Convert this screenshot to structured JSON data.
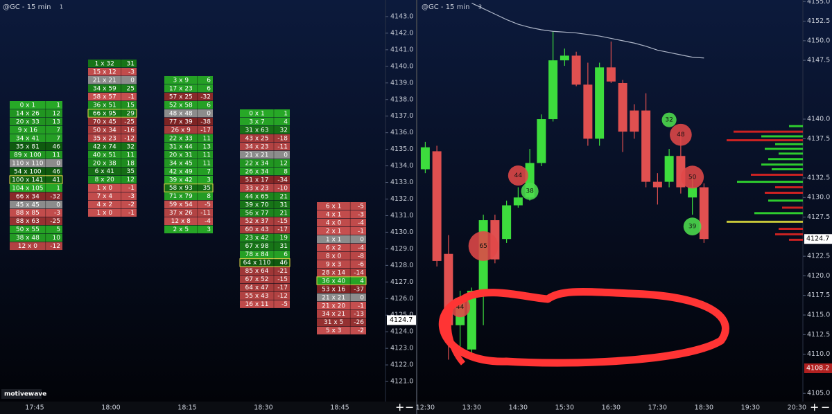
{
  "footprint": {
    "title": "@GC - 15 min",
    "badge": "1",
    "watermark": "motivewave",
    "ylim": [
      4120,
      4144
    ],
    "ticks": [
      {
        "value": 4143,
        "label": "4143.0"
      },
      {
        "value": 4142,
        "label": "4142.0"
      },
      {
        "value": 4141,
        "label": "4141.0"
      },
      {
        "value": 4140,
        "label": "4140.0"
      },
      {
        "value": 4139,
        "label": "4139.0"
      },
      {
        "value": 4138,
        "label": "4138.0"
      },
      {
        "value": 4137,
        "label": "4137.0"
      },
      {
        "value": 4136,
        "label": "4136.0"
      },
      {
        "value": 4135,
        "label": "4135.0"
      },
      {
        "value": 4134,
        "label": "4134.0"
      },
      {
        "value": 4133,
        "label": "4133.0"
      },
      {
        "value": 4132,
        "label": "4132.0"
      },
      {
        "value": 4131,
        "label": "4131.0"
      },
      {
        "value": 4130,
        "label": "4130.0"
      },
      {
        "value": 4129,
        "label": "4129.0"
      },
      {
        "value": 4128,
        "label": "4128.0"
      },
      {
        "value": 4127,
        "label": "4127.0"
      },
      {
        "value": 4126,
        "label": "4126.0"
      },
      {
        "value": 4125,
        "label": "4125.0"
      },
      {
        "value": 4124,
        "label": "4124.0"
      },
      {
        "value": 4123,
        "label": "4123.0"
      },
      {
        "value": 4122,
        "label": "4122.0"
      },
      {
        "value": 4121,
        "label": "4121.0"
      }
    ],
    "last_price": 4124.7,
    "time_labels": [
      "17:45",
      "18:00",
      "18:15",
      "18:30",
      "18:45"
    ],
    "columns": [
      {
        "cells": [
          {
            "label": "0 x 1",
            "delta": 1
          },
          {
            "label": "14 x 26",
            "delta": 12
          },
          {
            "label": "20 x 33",
            "delta": 13
          },
          {
            "label": "9 x 16",
            "delta": 7
          },
          {
            "label": "34 x 41",
            "delta": 7
          },
          {
            "label": "35 x 81",
            "delta": 46
          },
          {
            "label": "89 x 100",
            "delta": 11
          },
          {
            "label": "110 x 110",
            "delta": 0
          },
          {
            "label": "54 x 100",
            "delta": 46
          },
          {
            "label": "100 x 141",
            "delta": 41,
            "boxed": true
          },
          {
            "label": "104 x 105",
            "delta": 1
          },
          {
            "label": "66 x 34",
            "delta": -32
          },
          {
            "label": "45 x 45",
            "delta": 0
          },
          {
            "label": "88 x 85",
            "delta": -3
          },
          {
            "label": "88 x 63",
            "delta": -25
          },
          {
            "label": "50 x 55",
            "delta": 5
          },
          {
            "label": "38 x 48",
            "delta": 10
          },
          {
            "label": "12 x 0",
            "delta": -12
          }
        ]
      },
      {
        "cells": [
          {
            "label": "1 x 32",
            "delta": 31
          },
          {
            "label": "15 x 12",
            "delta": -3
          },
          {
            "label": "21 x 21",
            "delta": 0
          },
          {
            "label": "34 x 59",
            "delta": 25
          },
          {
            "label": "58 x 57",
            "delta": -1
          },
          {
            "label": "36 x 51",
            "delta": 15
          },
          {
            "label": "66 x 95",
            "delta": 29,
            "boxed": true
          },
          {
            "label": "70 x 45",
            "delta": -25
          },
          {
            "label": "50 x 34",
            "delta": -16
          },
          {
            "label": "35 x 23",
            "delta": -12
          },
          {
            "label": "42 x 74",
            "delta": 32
          },
          {
            "label": "40 x 51",
            "delta": 11
          },
          {
            "label": "20 x 38",
            "delta": 18
          },
          {
            "label": "6 x 41",
            "delta": 35
          },
          {
            "label": "8 x 20",
            "delta": 12
          },
          {
            "label": "1 x 0",
            "delta": -1
          },
          {
            "label": "7 x 4",
            "delta": -3
          },
          {
            "label": "4 x 2",
            "delta": -2
          },
          {
            "label": "1 x 0",
            "delta": -1
          }
        ]
      },
      {
        "cells": [
          {
            "label": "3 x 9",
            "delta": 6
          },
          {
            "label": "17 x 23",
            "delta": 6
          },
          {
            "label": "57 x 25",
            "delta": -32
          },
          {
            "label": "52 x 58",
            "delta": 6
          },
          {
            "label": "48 x 48",
            "delta": 0
          },
          {
            "label": "77 x 39",
            "delta": -38
          },
          {
            "label": "26 x 9",
            "delta": -17
          },
          {
            "label": "22 x 33",
            "delta": 11
          },
          {
            "label": "31 x 44",
            "delta": 13
          },
          {
            "label": "20 x 31",
            "delta": 11
          },
          {
            "label": "34 x 45",
            "delta": 11
          },
          {
            "label": "42 x 49",
            "delta": 7
          },
          {
            "label": "39 x 42",
            "delta": 3
          },
          {
            "label": "58 x 93",
            "delta": 35,
            "boxed": true
          },
          {
            "label": "71 x 79",
            "delta": 8
          },
          {
            "label": "59 x 54",
            "delta": -5
          },
          {
            "label": "37 x 26",
            "delta": -11
          },
          {
            "label": "12 x 8",
            "delta": -4
          },
          {
            "label": "2 x 5",
            "delta": 3
          }
        ]
      },
      {
        "cells": [
          {
            "label": "0 x 1",
            "delta": 1
          },
          {
            "label": "3 x 7",
            "delta": 4
          },
          {
            "label": "31 x 63",
            "delta": 32
          },
          {
            "label": "43 x 25",
            "delta": -18
          },
          {
            "label": "34 x 23",
            "delta": -11
          },
          {
            "label": "21 x 21",
            "delta": 0
          },
          {
            "label": "22 x 34",
            "delta": 12
          },
          {
            "label": "26 x 34",
            "delta": 8
          },
          {
            "label": "51 x 17",
            "delta": -34
          },
          {
            "label": "33 x 23",
            "delta": -10
          },
          {
            "label": "44 x 65",
            "delta": 21
          },
          {
            "label": "39 x 70",
            "delta": 31
          },
          {
            "label": "56 x 77",
            "delta": 21
          },
          {
            "label": "52 x 37",
            "delta": -15
          },
          {
            "label": "60 x 43",
            "delta": -17
          },
          {
            "label": "23 x 42",
            "delta": 19
          },
          {
            "label": "67 x 98",
            "delta": 31
          },
          {
            "label": "78 x 84",
            "delta": 6
          },
          {
            "label": "64 x 110",
            "delta": 46,
            "boxed": true
          },
          {
            "label": "85 x 64",
            "delta": -21
          },
          {
            "label": "67 x 52",
            "delta": -15
          },
          {
            "label": "64 x 47",
            "delta": -17
          },
          {
            "label": "55 x 43",
            "delta": -12
          },
          {
            "label": "16 x 11",
            "delta": -5
          }
        ]
      },
      {
        "cells": [
          {
            "label": "6 x 1",
            "delta": -5
          },
          {
            "label": "4 x 1",
            "delta": -3
          },
          {
            "label": "4 x 0",
            "delta": -4
          },
          {
            "label": "2 x 1",
            "delta": -1
          },
          {
            "label": "1 x 1",
            "delta": 0
          },
          {
            "label": "6 x 2",
            "delta": -4
          },
          {
            "label": "8 x 0",
            "delta": -8
          },
          {
            "label": "9 x 3",
            "delta": -6
          },
          {
            "label": "28 x 14",
            "delta": -14
          },
          {
            "label": "36 x 40",
            "delta": 4,
            "boxed": true
          },
          {
            "label": "53 x 16",
            "delta": -37
          },
          {
            "label": "21 x 21",
            "delta": 0
          },
          {
            "label": "21 x 20",
            "delta": -1
          },
          {
            "label": "34 x 21",
            "delta": -13
          },
          {
            "label": "31 x 5",
            "delta": -26
          },
          {
            "label": "5 x 3",
            "delta": -2
          }
        ]
      }
    ]
  },
  "chart_data": {
    "type": "candlestick",
    "title": "@GC - 15 min",
    "badge": "3",
    "categories": [
      "12:30",
      null,
      null,
      null,
      "13:30",
      null,
      null,
      null,
      "14:30",
      null,
      null,
      null,
      "15:30",
      null,
      null,
      null,
      "16:30",
      null,
      null,
      null,
      "17:30",
      null,
      null,
      null,
      "18:30",
      null,
      null,
      null,
      "19:30",
      null,
      null,
      null,
      "20:30"
    ],
    "open": [
      4133.6,
      4135.9,
      4122.8,
      4113.7,
      4110.6,
      4118.1,
      4127.1,
      4124.7,
      4129.0,
      4130.0,
      4134.4,
      4140.0,
      4147.5,
      4148.1,
      4144.4,
      4137.5,
      4146.6,
      4144.6,
      4141.1,
      4141.1,
      4132.0,
      4132.0,
      4135.3,
      4130.0,
      4131.3,
      null,
      null,
      null,
      null,
      null,
      null,
      null,
      null
    ],
    "high": [
      4137.1,
      4136.6,
      4125.2,
      4118.1,
      4118.5,
      4127.8,
      4127.8,
      4129.6,
      4131.3,
      4136.2,
      4140.6,
      4151.2,
      4149.0,
      4148.6,
      4147.2,
      4147.2,
      4149.9,
      4145.0,
      4141.9,
      4143.3,
      4133.1,
      4136.2,
      4138.4,
      4132.7,
      4131.8,
      null,
      null,
      null,
      null,
      null,
      null,
      null,
      null
    ],
    "low": [
      4133.1,
      4121.2,
      4109.3,
      4110.1,
      4110.1,
      4113.7,
      4121.6,
      4124.2,
      4128.7,
      4129.6,
      4134.0,
      4139.7,
      4146.8,
      4144.2,
      4136.6,
      4136.6,
      4144.6,
      4135.8,
      4137.5,
      4131.3,
      4129.1,
      4131.3,
      4130.5,
      4127.8,
      4124.2,
      null,
      null,
      null,
      null,
      null,
      null,
      null,
      null
    ],
    "close": [
      4136.4,
      4121.9,
      4113.7,
      4117.2,
      4118.1,
      4127.1,
      4122.1,
      4129.0,
      4130.0,
      4134.4,
      4140.0,
      4147.5,
      4148.1,
      4144.4,
      4137.5,
      4146.6,
      4144.8,
      4138.4,
      4138.4,
      4132.0,
      4131.3,
      4135.3,
      4131.3,
      4131.3,
      4124.7,
      null,
      null,
      null,
      null,
      null,
      null,
      null,
      null
    ],
    "up_color": "#3ddc3d",
    "down_color": "#e05050",
    "moving_average": {
      "color": "#aeb6c8",
      "values": [
        null,
        null,
        null,
        null,
        4154.8,
        4154.1,
        4153.4,
        4152.7,
        4152.1,
        4151.7,
        4151.4,
        4151.2,
        4151.1,
        4151.0,
        4150.8,
        4150.6,
        4150.3,
        4150.0,
        4149.7,
        4149.3,
        4148.8,
        4148.5,
        4148.2,
        4147.9,
        4147.8,
        null,
        null,
        null,
        null,
        null,
        null,
        null,
        null
      ]
    },
    "bubbles": [
      {
        "index": 3,
        "price": 4116.0,
        "value": 44,
        "color": "#e04848"
      },
      {
        "index": 5,
        "price": 4123.8,
        "value": 65,
        "color": "#e04848"
      },
      {
        "index": 8,
        "price": 4132.8,
        "value": 44,
        "color": "#e04848"
      },
      {
        "index": 9,
        "price": 4130.8,
        "value": 38,
        "color": "#4ddd4d"
      },
      {
        "index": 21,
        "price": 4139.9,
        "value": 32,
        "color": "#4ddd4d"
      },
      {
        "index": 22,
        "price": 4138.0,
        "value": 48,
        "color": "#e04848"
      },
      {
        "index": 23,
        "price": 4132.6,
        "value": 50,
        "color": "#e04848"
      },
      {
        "index": 23,
        "price": 4126.3,
        "value": 39,
        "color": "#4ddd4d"
      }
    ],
    "volume_profile": {
      "prices": [
        4139.1,
        4138.4,
        4137.8,
        4137.3,
        4136.8,
        4136.2,
        4135.6,
        4134.9,
        4134.2,
        4133.6,
        4132.9,
        4132.0,
        4131.3,
        4130.6,
        4129.6,
        4128.7,
        4128.0,
        4126.9,
        4126.0,
        4125.3,
        4124.6
      ],
      "volumes": [
        20,
        100,
        60,
        110,
        40,
        55,
        35,
        50,
        60,
        45,
        75,
        95,
        40,
        55,
        50,
        30,
        70,
        110,
        35,
        40,
        20
      ],
      "colors": [
        "#2ecc2e",
        "#cc2222",
        "#2ecc2e",
        "#cc2222",
        "#2ecc2e",
        "#2ecc2e",
        "#2ecc2e",
        "#2ecc2e",
        "#2ecc2e",
        "#2ecc2e",
        "#cc2222",
        "#2ecc2e",
        "#cc2222",
        "#cc2222",
        "#2ecc2e",
        "#cc2222",
        "#2ecc2e",
        "#c8c83a",
        "#cc2222",
        "#cc2222",
        "#cc2222"
      ]
    },
    "ylim": [
      4104.4,
      4155.2
    ],
    "yticks": [
      {
        "value": 4155,
        "label": "4155.0"
      },
      4152.5,
      {
        "value": 4150,
        "label": "4150.0"
      },
      4147.5,
      {
        "value": 4140,
        "label": "4140.0"
      },
      4137.5,
      4132.5,
      {
        "value": 4130,
        "label": "4130.0"
      },
      4127.5,
      4122.5,
      {
        "value": 4120,
        "label": "4120.0"
      },
      4117.5,
      {
        "value": 4115,
        "label": "4115.0"
      },
      4112.5,
      {
        "value": 4110,
        "label": "4110.0"
      },
      {
        "value": 4105,
        "label": "4105.0"
      }
    ],
    "price_tags": [
      4124.7,
      4108.2
    ]
  }
}
